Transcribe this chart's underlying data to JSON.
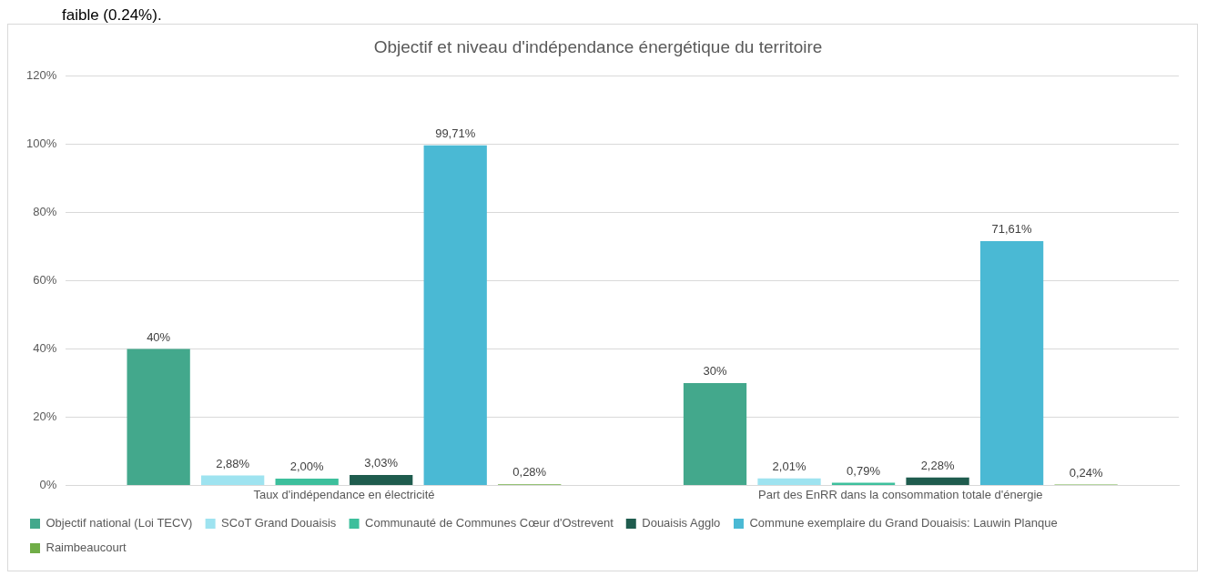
{
  "chart_data": {
    "type": "bar",
    "title": "Objectif et niveau d'indépendance énergétique du territoire",
    "categories": [
      "Taux d'indépendance en électricité",
      "Part des EnRR dans la consommation totale d'énergie"
    ],
    "series": [
      {
        "name": "Objectif national (Loi TECV)",
        "color": "#43a88c",
        "values": [
          40,
          30
        ],
        "value_labels": [
          "40%",
          "30%"
        ]
      },
      {
        "name": "SCoT Grand Douaisis",
        "color": "#9ee3f0",
        "values": [
          2.88,
          2.01
        ],
        "value_labels": [
          "2,88%",
          "2,01%"
        ]
      },
      {
        "name": "Communauté de Communes Cœur d'Ostrevent",
        "color": "#3dbf9c",
        "values": [
          2.0,
          0.79
        ],
        "value_labels": [
          "2,00%",
          "0,79%"
        ]
      },
      {
        "name": "Douaisis Agglo",
        "color": "#1f5c4e",
        "values": [
          3.03,
          2.28
        ],
        "value_labels": [
          "3,03%",
          "2,28%"
        ]
      },
      {
        "name": "Commune exemplaire du Grand Douaisis: Lauwin Planque",
        "color": "#4ab9d4",
        "values": [
          99.71,
          71.61
        ],
        "value_labels": [
          "99,71%",
          "71,61%"
        ]
      },
      {
        "name": "Raimbeaucourt",
        "color": "#70ad47",
        "values": [
          0.28,
          0.24
        ],
        "value_labels": [
          "0,28%",
          "0,24%"
        ]
      }
    ],
    "ylim": [
      0,
      120
    ],
    "yticks": [
      {
        "value": 0,
        "label": "0%"
      },
      {
        "value": 20,
        "label": "20%"
      },
      {
        "value": 40,
        "label": "40%"
      },
      {
        "value": 60,
        "label": "60%"
      },
      {
        "value": 80,
        "label": "80%"
      },
      {
        "value": 100,
        "label": "100%"
      },
      {
        "value": 120,
        "label": "120%"
      }
    ],
    "grid": "y",
    "legend": "bottom",
    "annotations": [
      "faible (0.24%)."
    ]
  }
}
